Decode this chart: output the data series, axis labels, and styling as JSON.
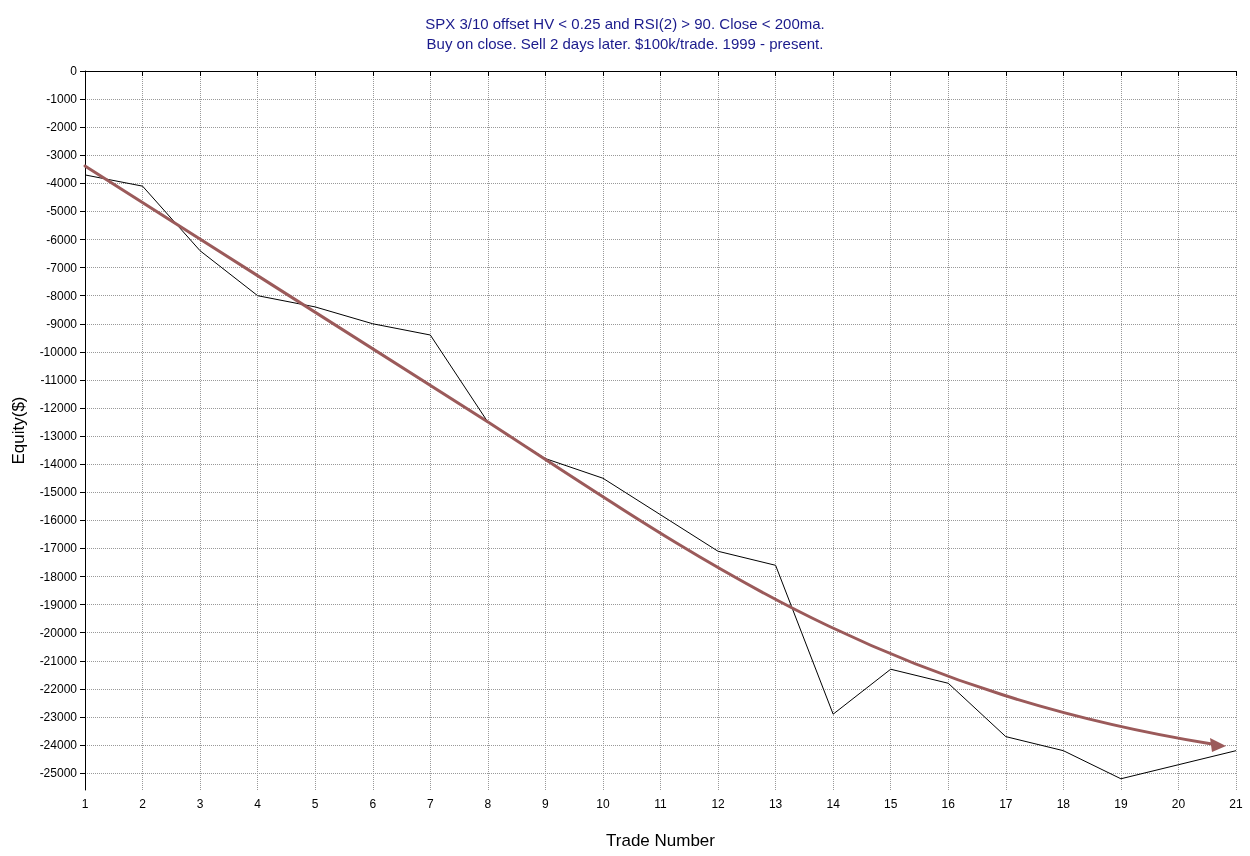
{
  "chart_data": {
    "type": "line",
    "title": "SPX 3/10 offset HV < 0.25 and RSI(2) > 90. Close < 200ma.\nBuy on close. Sell 2 days later. $100k/trade. 1999 - present.",
    "xlabel": "Trade Number",
    "ylabel": "Equity($)",
    "x": [
      1,
      2,
      3,
      4,
      5,
      6,
      7,
      8,
      9,
      10,
      11,
      12,
      13,
      14,
      15,
      16,
      17,
      18,
      19,
      20,
      21
    ],
    "series": [
      {
        "color": "#000000",
        "values": [
          -3700,
          -4100,
          -6400,
          -8000,
          -8400,
          -9000,
          -9400,
          -12500,
          -13800,
          -14500,
          -15800,
          -17100,
          -17600,
          -22900,
          -21300,
          -21800,
          -23700,
          -24200,
          -25200,
          -24700,
          -24200
        ]
      }
    ],
    "xlim": [
      1,
      21
    ],
    "xticks": [
      1,
      2,
      3,
      4,
      5,
      6,
      7,
      8,
      9,
      10,
      11,
      12,
      13,
      14,
      15,
      16,
      17,
      18,
      19,
      20,
      21
    ],
    "ylim": [
      -25600,
      0
    ],
    "yticks": [
      0,
      -1000,
      -2000,
      -3000,
      -4000,
      -5000,
      -6000,
      -7000,
      -8000,
      -9000,
      -10000,
      -11000,
      -12000,
      -13000,
      -14000,
      -15000,
      -16000,
      -17000,
      -18000,
      -19000,
      -20000,
      -21000,
      -22000,
      -23000,
      -24000,
      -25000
    ],
    "grid": true,
    "marker": "none",
    "line_style": "solid"
  }
}
